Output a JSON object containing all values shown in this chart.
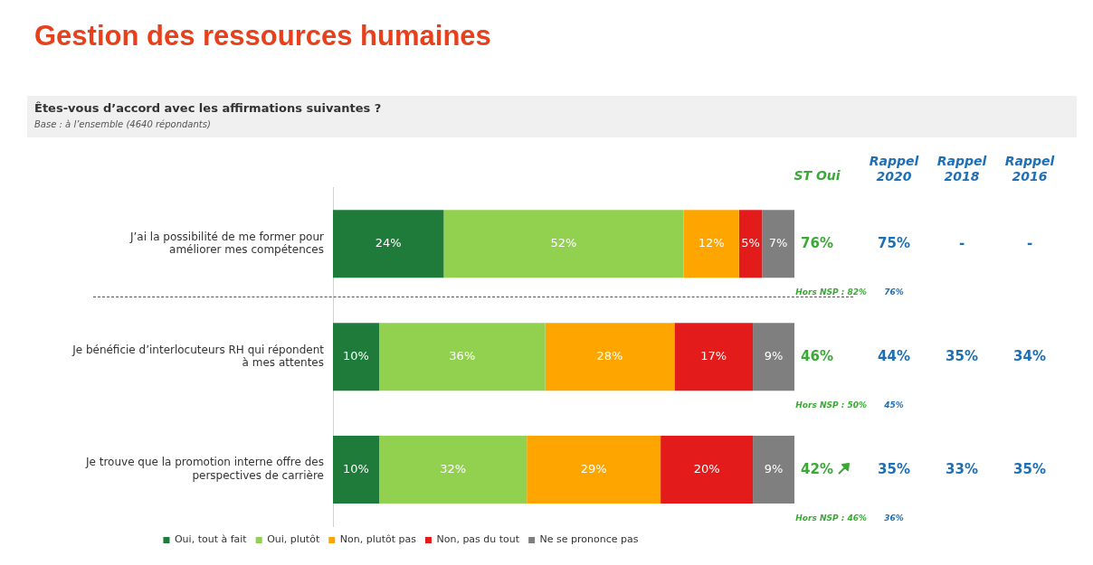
{
  "chart_data": {
    "type": "bar",
    "orientation": "horizontal",
    "stacked": true,
    "title": "Gestion des ressources humaines",
    "subtitle": "Êtes-vous d’accord avec les affirmations suivantes ?",
    "categories": [
      "J’ai la possibilité de me former pour améliorer mes compétences",
      "Je bénéficie d’interlocuteurs RH qui répondent à mes attentes",
      "Je trouve que la promotion interne offre des perspectives de carrière"
    ],
    "series": [
      {
        "name": "Oui, tout à fait",
        "color": "#1e7b3a",
        "values": [
          24,
          10,
          10
        ],
        "value_labels": [
          "24%",
          "10%",
          "10%"
        ]
      },
      {
        "name": "Oui, plutôt",
        "color": "#92d050",
        "values": [
          52,
          36,
          32
        ],
        "value_labels": [
          "52%",
          "36%",
          "32%"
        ]
      },
      {
        "name": "Non, plutôt pas",
        "color": "#ffa500",
        "values": [
          12,
          28,
          29
        ],
        "value_labels": [
          "12%",
          "28%",
          "29%"
        ]
      },
      {
        "name": "Non, pas du tout",
        "color": "#e31b1b",
        "values": [
          5,
          17,
          20
        ],
        "value_labels": [
          "5%",
          "17%",
          "20%"
        ]
      },
      {
        "name": "Ne se prononce pas",
        "color": "#7f7f7f",
        "values": [
          7,
          9,
          9
        ],
        "value_labels": [
          "7%",
          "9%",
          "9%"
        ]
      }
    ],
    "xlim": [
      0,
      100
    ],
    "tick_labels": "y",
    "grid": false,
    "legend": "bottom",
    "marker": "square",
    "annotations": [
      "Base : à l’ensemble (4640 répondants)",
      "ST Oui",
      "Rappel 2020",
      "Rappel 2018",
      "Rappel 2016",
      "76%",
      "75%",
      "-",
      "-",
      "Hors NSP : 82%",
      "76%",
      "46%",
      "44%",
      "35%",
      "34%",
      "Hors NSP : 50%",
      "45%",
      "42%",
      "35%",
      "33%",
      "35%",
      "Hors NSP : 46%",
      "36%"
    ]
  }
}
